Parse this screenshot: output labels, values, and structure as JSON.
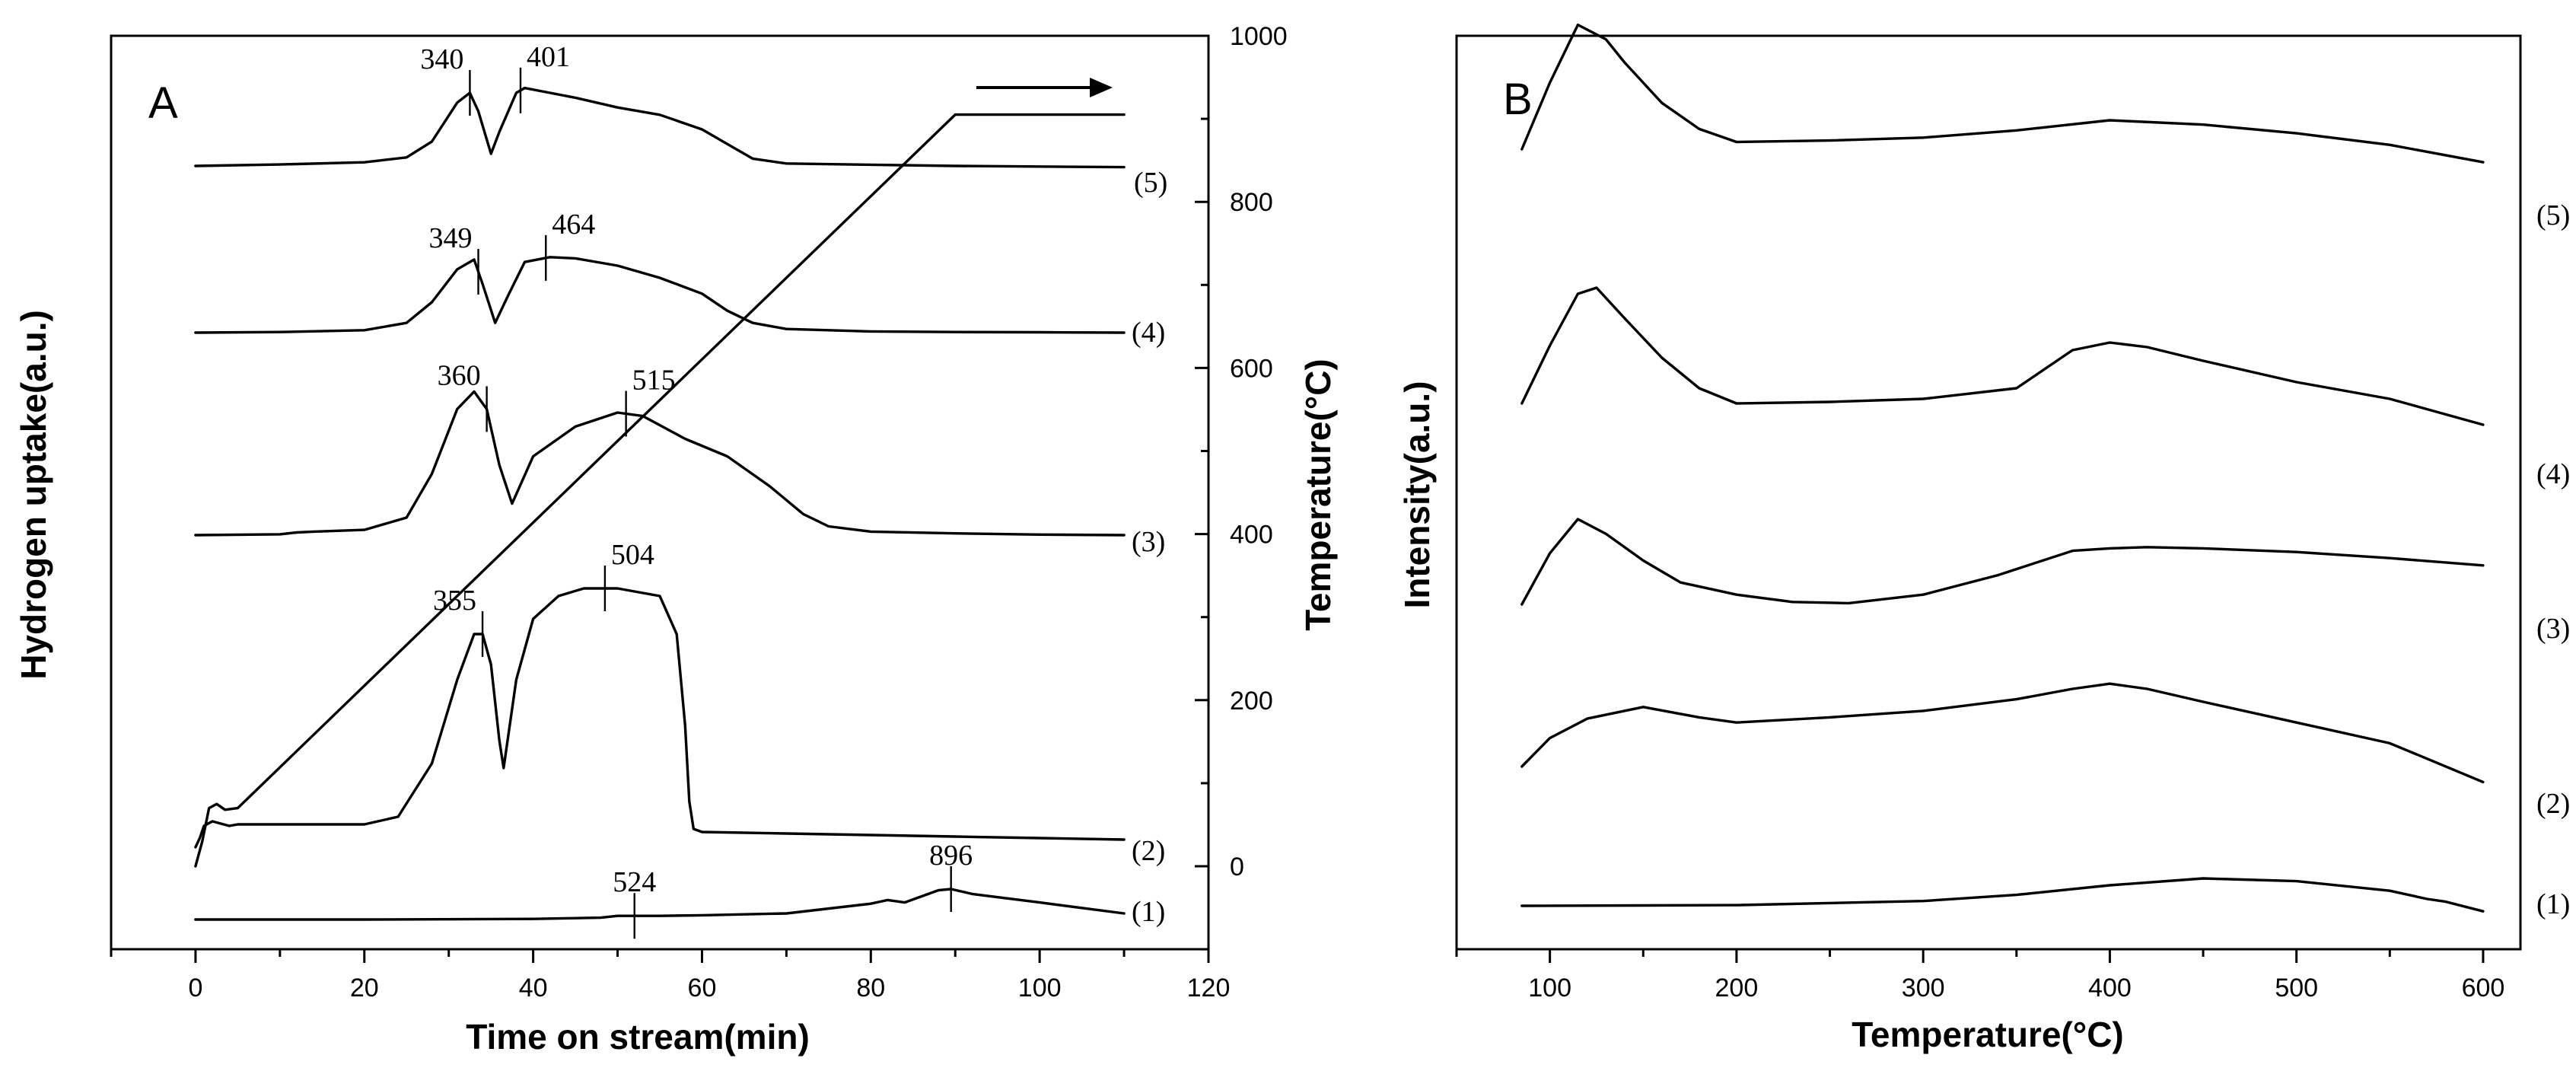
{
  "chart_data": [
    {
      "panel": "A",
      "type": "line",
      "title": "",
      "xlabel": "Time on stream(min)",
      "ylabel": "Hydrogen uptake(a.u.)",
      "y2label": "Temperature(°C)",
      "xlim": [
        -10,
        120
      ],
      "xticks": [
        0,
        20,
        40,
        60,
        80,
        100,
        120
      ],
      "y2lim": [
        -100,
        1000
      ],
      "y2ticks": [
        0,
        200,
        400,
        600,
        800,
        1000
      ],
      "legend": "right-side curve labels",
      "arrow_direction": "right",
      "series": [
        {
          "name": "(5)",
          "x": [
            0,
            10,
            20,
            25,
            28,
            31,
            32.5,
            33.5,
            35,
            36,
            38,
            39,
            42,
            45,
            50,
            55,
            60,
            63,
            66,
            70,
            80,
            90,
            100,
            110
          ],
          "values": [
            0,
            1.2,
            3,
            7,
            20,
            52,
            60,
            45,
            10,
            28,
            60,
            64,
            60,
            56,
            48,
            42,
            30,
            18,
            6,
            2,
            1,
            0,
            -0.5,
            -1
          ],
          "peaks": [
            {
              "label": "340",
              "x": 32.5
            },
            {
              "label": "401",
              "x": 38.5
            }
          ]
        },
        {
          "name": "(4)",
          "x": [
            0,
            10,
            20,
            25,
            28,
            31,
            33,
            34,
            35.5,
            37,
            39,
            42,
            45,
            50,
            55,
            60,
            63,
            66,
            70,
            80,
            90,
            100,
            110
          ],
          "values": [
            0,
            0.5,
            2,
            8,
            25,
            52,
            60,
            40,
            8,
            30,
            58,
            62,
            61,
            55,
            45,
            32,
            18,
            8,
            3,
            1,
            0.5,
            0.3,
            0
          ],
          "peaks": [
            {
              "label": "349",
              "x": 33.5
            },
            {
              "label": "464",
              "x": 41.5
            }
          ]
        },
        {
          "name": "(3)",
          "x": [
            0,
            10,
            12,
            14,
            20,
            25,
            28,
            31,
            33,
            34.5,
            36,
            37.5,
            40,
            45,
            50,
            53,
            58,
            63,
            68,
            72,
            75,
            80,
            90,
            100,
            110
          ],
          "values": [
            0,
            0.5,
            1.5,
            2,
            3,
            10,
            35,
            72,
            82,
            72,
            40,
            18,
            45,
            62,
            70,
            68,
            55,
            45,
            28,
            12,
            5,
            2,
            1,
            0.3,
            0
          ],
          "peaks": [
            {
              "label": "360",
              "x": 34.5
            },
            {
              "label": "515",
              "x": 51
            }
          ]
        },
        {
          "name": "(2)",
          "x": [
            0,
            0.5,
            1,
            2,
            4,
            5,
            10,
            20,
            24,
            28,
            31,
            33,
            34,
            35,
            36,
            36.5,
            38,
            40,
            43,
            46,
            50,
            55,
            57,
            58,
            58.5,
            59,
            60,
            70,
            80,
            90,
            100,
            110
          ],
          "values": [
            0,
            6,
            14,
            17,
            14,
            15,
            15,
            15,
            20,
            55,
            110,
            140,
            140,
            120,
            70,
            52,
            110,
            150,
            165,
            170,
            170,
            165,
            140,
            80,
            30,
            12,
            10,
            9,
            8,
            7,
            6,
            5
          ],
          "peaks": [
            {
              "label": "355",
              "x": 34
            },
            {
              "label": "504",
              "x": 48.5
            }
          ]
        },
        {
          "name": "(1)",
          "x": [
            0,
            20,
            40,
            48,
            50,
            55,
            60,
            70,
            80,
            82,
            84,
            86,
            88,
            89.5,
            92,
            100,
            110
          ],
          "values": [
            0,
            0,
            0.5,
            1.5,
            3,
            3,
            3.5,
            5,
            13,
            16,
            14,
            19,
            24,
            25,
            21,
            14,
            5
          ],
          "peaks": [
            {
              "label": "524",
              "x": 52
            },
            {
              "label": "896",
              "x": 89.5
            }
          ]
        },
        {
          "name": "Temperature",
          "axis": "right",
          "x": [
            0,
            0.8,
            1.6,
            2.5,
            3.5,
            5,
            90,
            110
          ],
          "values": [
            0,
            30,
            70,
            75,
            68,
            70,
            905,
            905
          ]
        }
      ]
    },
    {
      "panel": "B",
      "type": "line",
      "title": "",
      "xlabel": "Temperature(°C)",
      "ylabel": "Intensity(a.u.)",
      "xlim": [
        50,
        620
      ],
      "xticks": [
        100,
        200,
        300,
        400,
        500,
        600
      ],
      "legend": "right-side curve labels",
      "series": [
        {
          "name": "(5)",
          "x": [
            85,
            100,
            115,
            130,
            140,
            160,
            180,
            200,
            250,
            300,
            350,
            400,
            450,
            500,
            550,
            600
          ],
          "values": [
            0,
            46,
            86,
            76,
            60,
            32,
            14,
            5,
            6,
            8,
            13,
            20,
            17,
            11,
            3,
            -9
          ]
        },
        {
          "name": "(4)",
          "x": [
            85,
            100,
            115,
            125,
            140,
            160,
            180,
            200,
            250,
            300,
            350,
            380,
            400,
            420,
            450,
            500,
            550,
            600
          ],
          "values": [
            0,
            38,
            72,
            76,
            56,
            30,
            10,
            0,
            1,
            3,
            10,
            35,
            40,
            37,
            28,
            14,
            3,
            -14
          ]
        },
        {
          "name": "(3)",
          "x": [
            85,
            100,
            115,
            130,
            150,
            170,
            200,
            230,
            260,
            300,
            340,
            380,
            400,
            420,
            450,
            500,
            550,
            600
          ],
          "values": [
            0,
            42,
            70,
            58,
            36,
            18,
            8,
            2,
            1,
            8,
            24,
            44,
            46,
            47,
            46,
            43,
            38,
            32
          ]
        },
        {
          "name": "(2)",
          "x": [
            85,
            100,
            120,
            150,
            180,
            200,
            250,
            300,
            350,
            380,
            400,
            420,
            450,
            500,
            550,
            600
          ],
          "values": [
            0,
            22,
            37,
            46,
            38,
            34,
            38,
            43,
            52,
            60,
            64,
            60,
            50,
            34,
            18,
            -12
          ]
        },
        {
          "name": "(1)",
          "x": [
            85,
            200,
            300,
            350,
            400,
            450,
            500,
            550,
            570,
            580,
            600
          ],
          "values": [
            0,
            1,
            7,
            16,
            30,
            40,
            36,
            22,
            10,
            6,
            -8
          ]
        }
      ]
    }
  ]
}
